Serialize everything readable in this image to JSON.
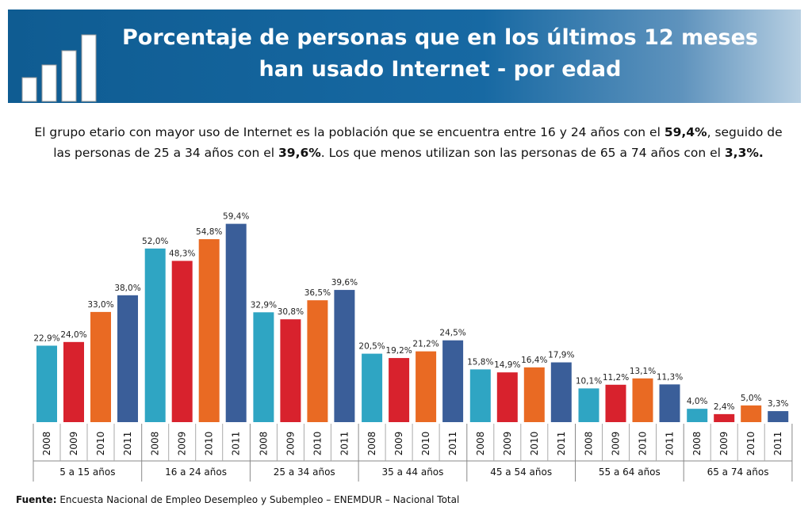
{
  "chart_data": {
    "type": "bar",
    "title": [
      "Porcentaje de personas que en los últimos 12 meses",
      "han usado Internet - por edad"
    ],
    "description": [
      [
        "El grupo etario con mayor uso de Internet es la población que se encuentra entre 16 y 24 años con el ",
        "59,4%",
        ", seguido de"
      ],
      [
        "las personas de 25 a 34 años con el ",
        "39,6%",
        ". Los que menos utilizan son las personas de  65 a 74 años con el ",
        "3,3%."
      ]
    ],
    "categories": [
      "5 a 15 años",
      "16 a 24 años",
      "25 a 34 años",
      "35 a 44 años",
      "45 a 54 años",
      "55 a 64 años",
      "65 a 74 años"
    ],
    "ylim": [
      0,
      65
    ],
    "series": [
      {
        "name": "2008",
        "color": "#2fa5c3",
        "values": [
          22.9,
          52.0,
          32.9,
          20.5,
          15.8,
          10.1,
          4.0
        ],
        "value_labels": [
          "22,9%",
          "52,0%",
          "32,9%",
          "20,5%",
          "15,8%",
          "10,1%",
          "4,0%"
        ]
      },
      {
        "name": "2009",
        "color": "#d8222d",
        "values": [
          24.0,
          48.3,
          30.8,
          19.2,
          14.9,
          11.2,
          2.4
        ],
        "value_labels": [
          "24,0%",
          "48,3%",
          "30,8%",
          "19,2%",
          "14,9%",
          "11,2%",
          "2,4%"
        ]
      },
      {
        "name": "2010",
        "color": "#e96a23",
        "values": [
          33.0,
          54.8,
          36.5,
          21.2,
          16.4,
          13.1,
          5.0
        ],
        "value_labels": [
          "33,0%",
          "54,8%",
          "36,5%",
          "21,2%",
          "16,4%",
          "13,1%",
          "5,0%"
        ]
      },
      {
        "name": "2011",
        "color": "#3a5e99",
        "values": [
          38.0,
          59.4,
          39.6,
          24.5,
          17.9,
          11.3,
          3.3
        ],
        "value_labels": [
          "38,0%",
          "59,4%",
          "39,6%",
          "24,5%",
          "17,9%",
          "11,3%",
          "3,3%"
        ]
      }
    ],
    "source_label": "Fuente:",
    "source": "Encuesta Nacional de Empleo Desempleo y Subempleo – ENEMDUR – Nacional Total"
  }
}
